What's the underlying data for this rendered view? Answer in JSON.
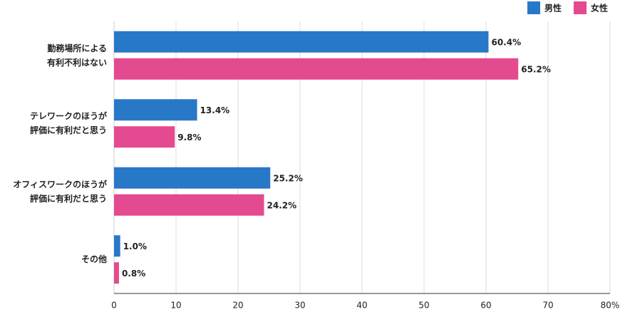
{
  "chart_data": {
    "type": "bar",
    "orientation": "horizontal",
    "categories": [
      "勤務場所による\n有利不利はない",
      "テレワークのほうが\n評価に有利だと思う",
      "オフィスワークのほうが\n評価に有利だと思う",
      "その他"
    ],
    "series": [
      {
        "name": "男性",
        "color": "#2878c8",
        "values": [
          60.4,
          13.4,
          25.2,
          1.0
        ],
        "value_labels": [
          "60.4%",
          "13.4%",
          "25.2%",
          "1.0%"
        ]
      },
      {
        "name": "女性",
        "color": "#e44a8f",
        "values": [
          65.2,
          9.8,
          24.2,
          0.8
        ],
        "value_labels": [
          "65.2%",
          "9.8%",
          "24.2%",
          "0.8%"
        ]
      }
    ],
    "xlim": [
      0,
      80
    ],
    "xticks": [
      0,
      10,
      20,
      30,
      40,
      50,
      60,
      70,
      {
        "value": 80,
        "label": "80%"
      }
    ],
    "grid": true,
    "legend": "top-right"
  }
}
